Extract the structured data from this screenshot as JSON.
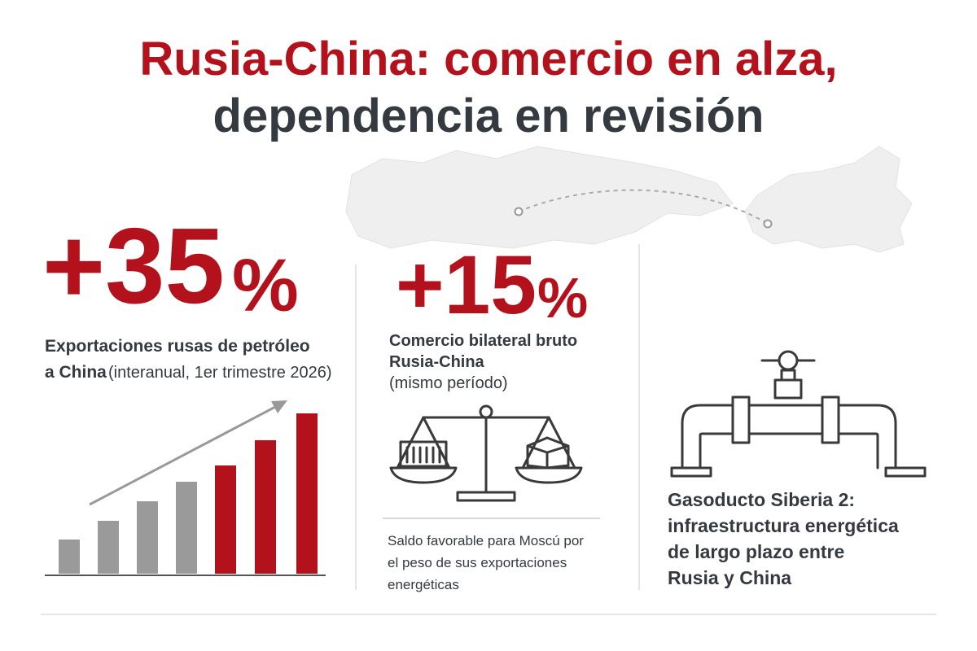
{
  "title": {
    "line1": "Rusia-China: comercio en alza,",
    "line2": "dependencia en revisión"
  },
  "stats": [
    {
      "value": "+35",
      "unit": "%",
      "label_lines": [
        "Exportaciones rusas de petróleo",
        "a China"
      ],
      "detail": "(interanual, 1er trimestre 2026)"
    },
    {
      "value": "+15",
      "unit": "%",
      "label_lines": [
        "Comercio bilateral bruto",
        "Rusia-China"
      ],
      "detail": "(mismo período)",
      "note_lines": [
        "Saldo favorable para Moscú por",
        "el peso de sus exportaciones",
        "energéticas"
      ]
    }
  ],
  "infrastructure": {
    "lines": [
      "Gasoducto Siberia 2:",
      "infraestructura energética",
      "de largo plazo entre",
      "Rusia y China"
    ]
  }
}
